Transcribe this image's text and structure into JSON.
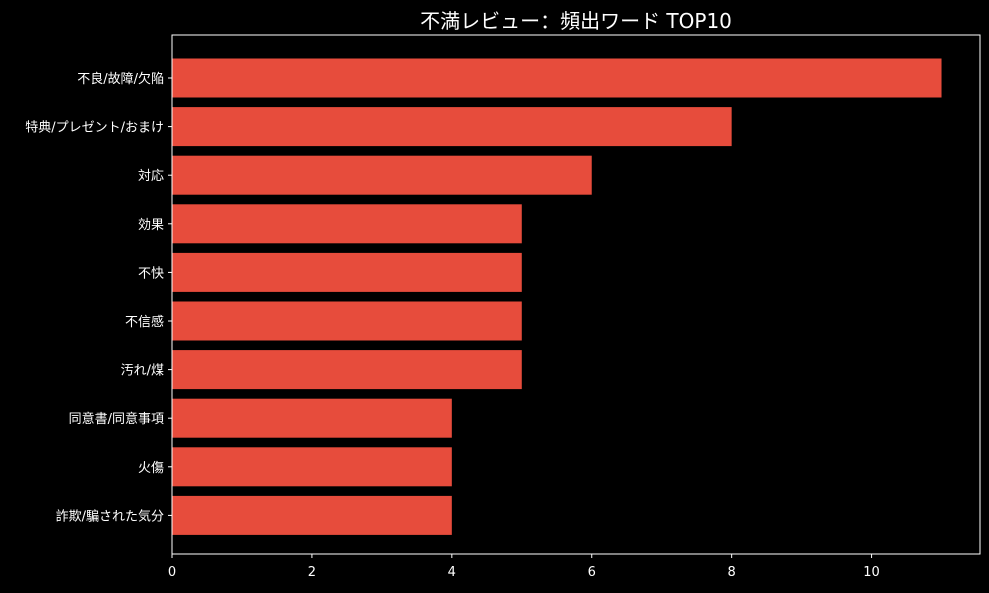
{
  "chart_data": {
    "type": "bar",
    "orientation": "horizontal",
    "title": "不満レビュー：頻出ワード TOP10",
    "xlabel": "",
    "ylabel": "",
    "categories": [
      "不良/故障/欠陥",
      "特典/プレゼント/おまけ",
      "対応",
      "効果",
      "不快",
      "不信感",
      "汚れ/煤",
      "同意書/同意事項",
      "火傷",
      "詐欺/騙された気分"
    ],
    "values": [
      11,
      8,
      6,
      5,
      5,
      5,
      5,
      4,
      4,
      4
    ],
    "xlim": [
      0,
      11.55
    ],
    "xticks": [
      "0",
      "2",
      "4",
      "6",
      "8",
      "10"
    ],
    "grid": false,
    "legend": "none",
    "colors": {
      "background": "#000000",
      "bar": "#e74c3c",
      "text": "#ffffff",
      "axis": "#ffffff"
    }
  }
}
